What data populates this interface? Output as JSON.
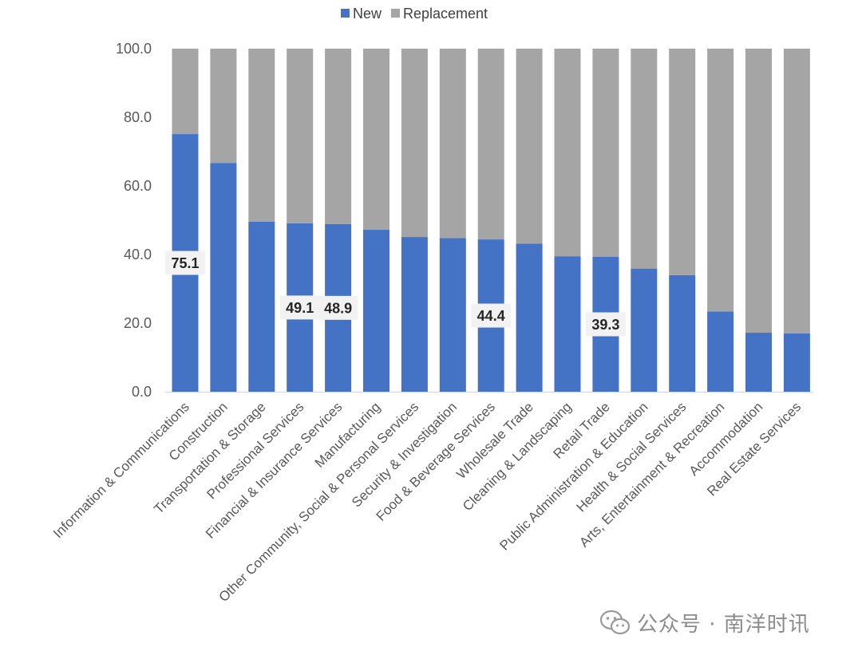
{
  "chart_data": {
    "type": "bar",
    "stacked": true,
    "categories": [
      "Information & Communications",
      "Construction",
      "Transportation & Storage",
      "Professional Services",
      "Financial & Insurance Services",
      "Manufacturing",
      "Other Community, Social & Personal Services",
      "Security & Investigation",
      "Food & Beverage Services",
      "Wholesale Trade",
      "Cleaning & Landscaping",
      "Retail Trade",
      "Public Administration & Education",
      "Health & Social Services",
      "Arts, Entertainment & Recreation",
      "Accommodation",
      "Real Estate Services"
    ],
    "series": [
      {
        "name": "New",
        "color": "#4472C4",
        "values": [
          75.1,
          66.7,
          49.6,
          49.1,
          48.9,
          47.2,
          45.1,
          44.8,
          44.4,
          43.2,
          39.5,
          39.3,
          35.9,
          34.0,
          23.4,
          17.2,
          17.0
        ]
      },
      {
        "name": "Replacement",
        "color": "#A5A5A5",
        "values": [
          24.9,
          33.3,
          50.4,
          50.9,
          51.1,
          52.8,
          54.9,
          55.2,
          55.6,
          56.8,
          60.5,
          60.7,
          64.1,
          66.0,
          76.6,
          82.8,
          83.0
        ]
      }
    ],
    "data_labels": [
      {
        "category_index": 0,
        "text": "75.1"
      },
      {
        "category_index": 3,
        "text": "49.1"
      },
      {
        "category_index": 4,
        "text": "48.9"
      },
      {
        "category_index": 8,
        "text": "44.4"
      },
      {
        "category_index": 11,
        "text": "39.3"
      }
    ],
    "y_ticks": [
      "0.0",
      "20.0",
      "40.0",
      "60.0",
      "80.0",
      "100.0"
    ],
    "ylim": [
      0,
      100
    ],
    "legend_position": "top-center",
    "grid": false,
    "xlabel": "",
    "ylabel": "",
    "title": ""
  },
  "watermark": {
    "icon": "wechat-icon",
    "text": "公众号 · 南洋时讯"
  }
}
